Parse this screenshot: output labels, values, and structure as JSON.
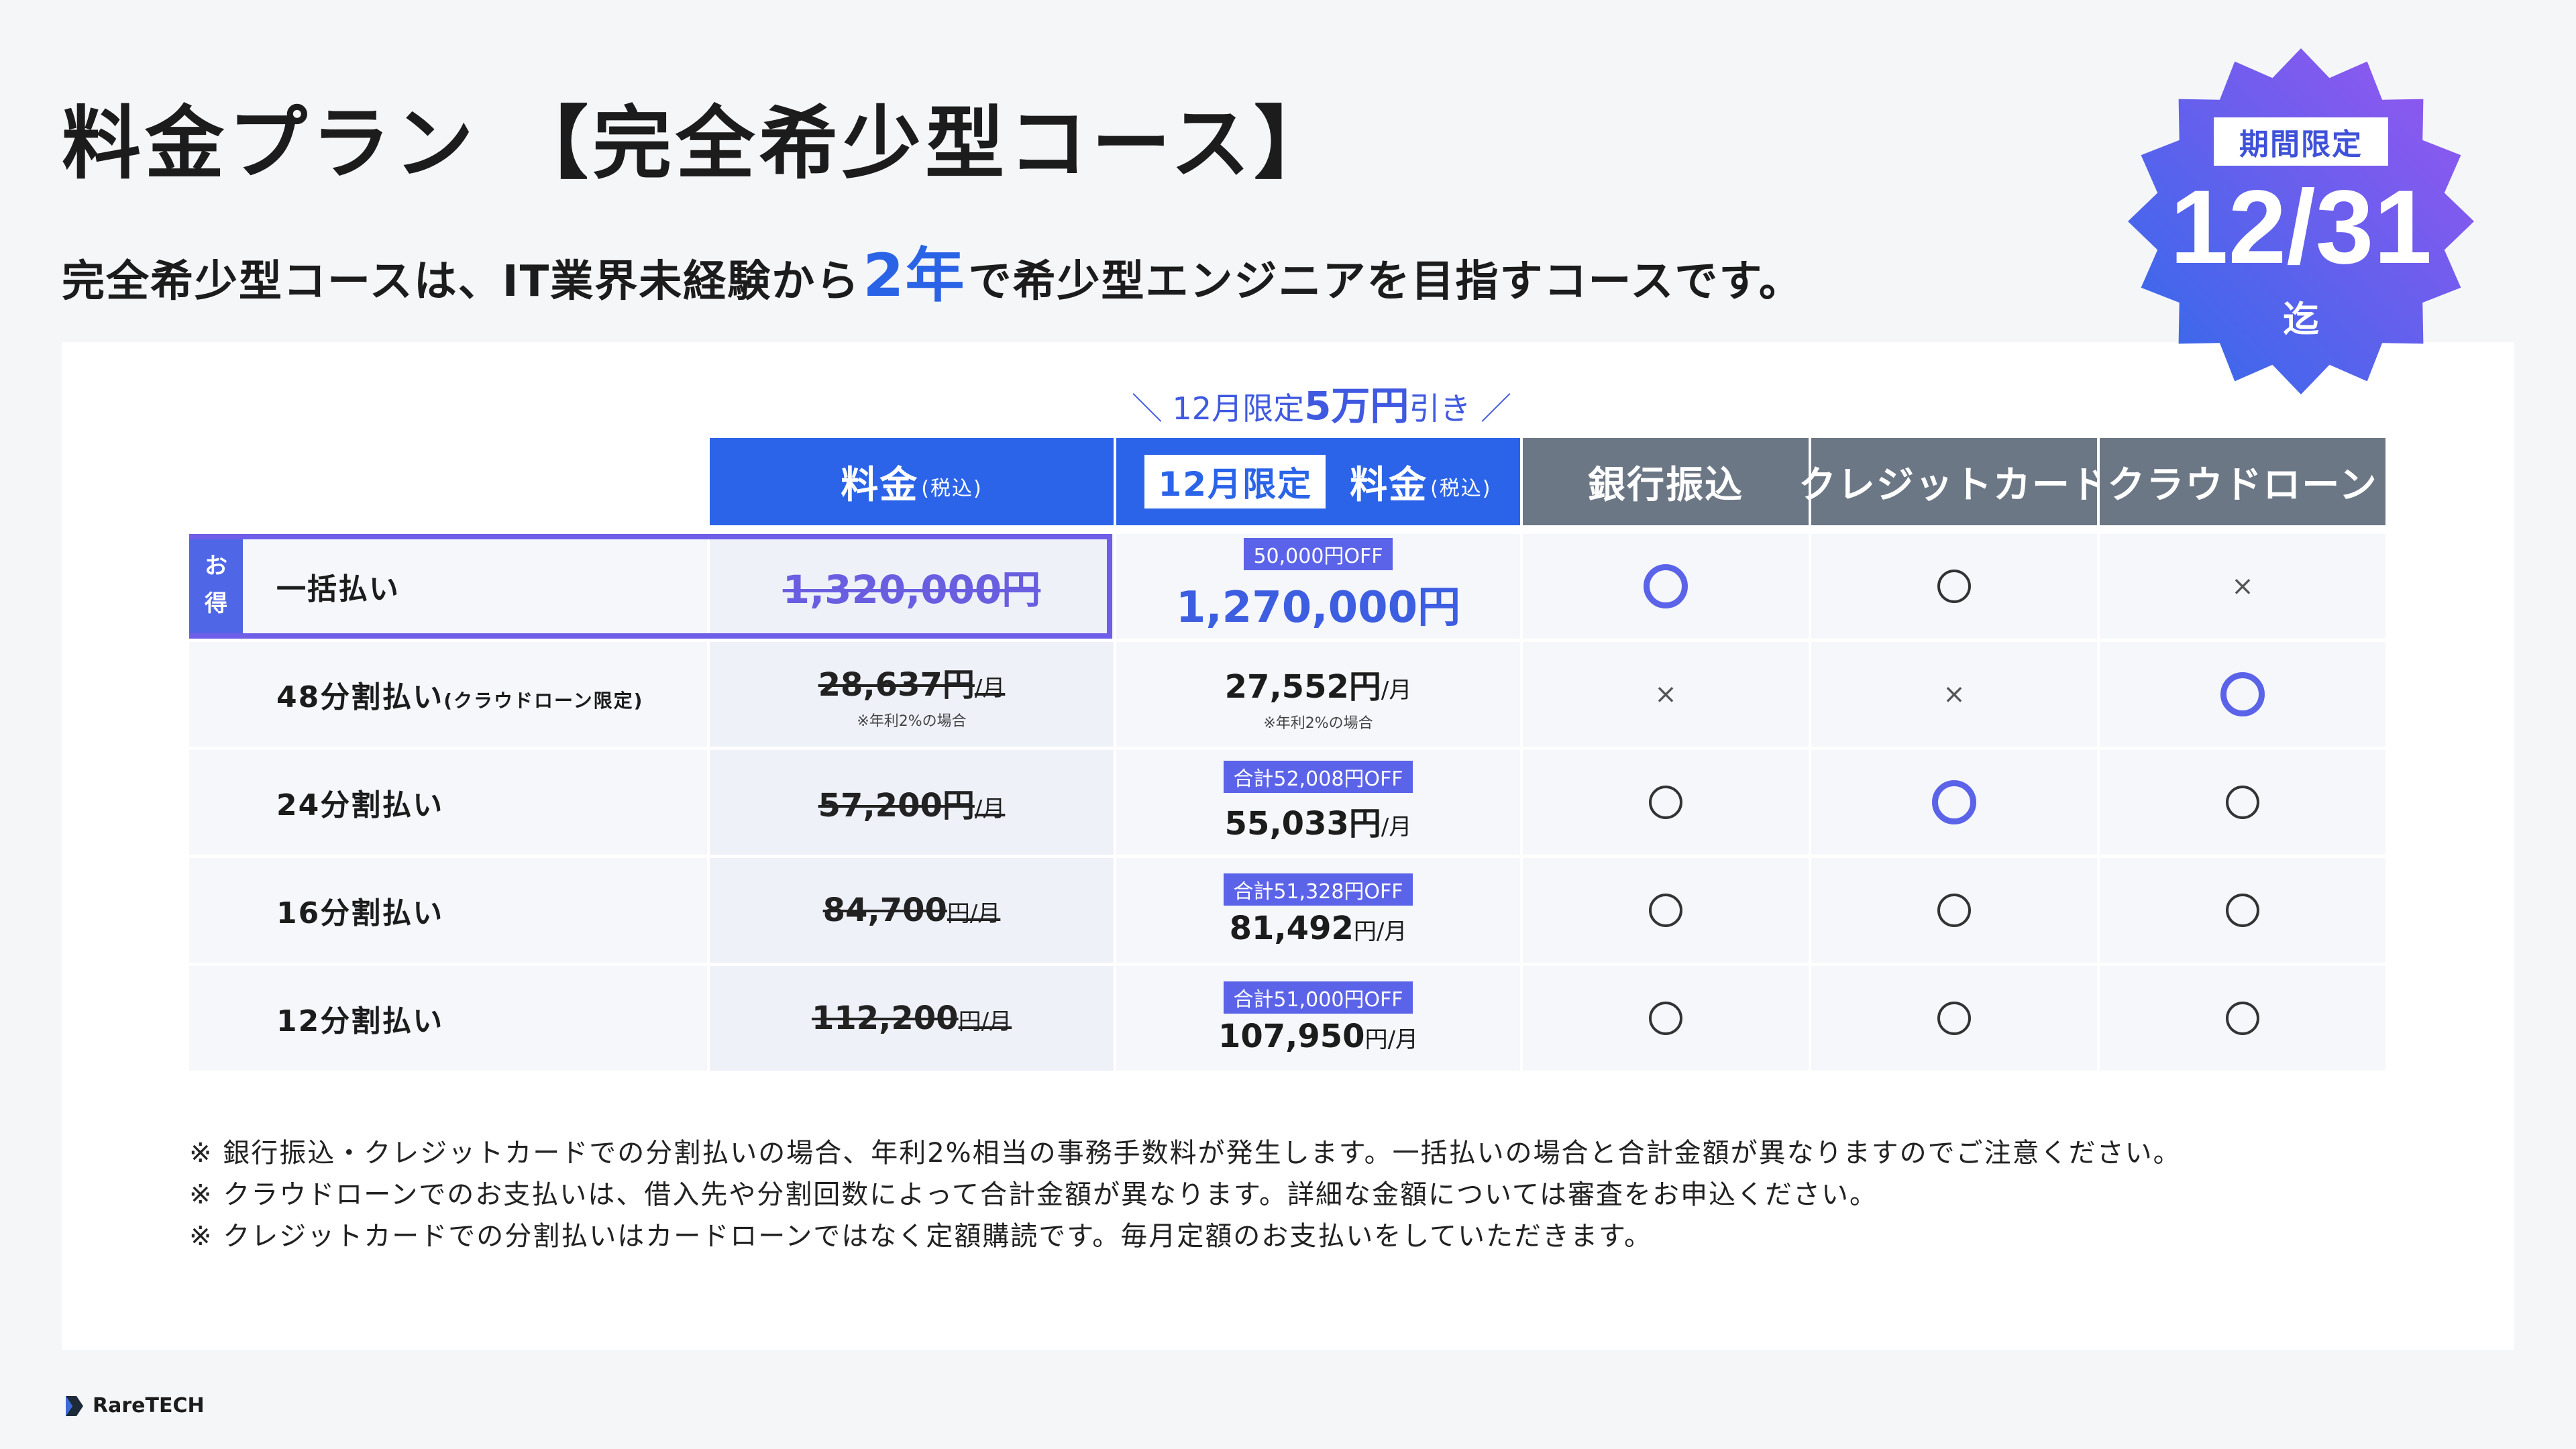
{
  "title": "料金プラン 【完全希少型コース】",
  "subtitle": {
    "before": "完全希少型コースは、IT業界未経験から",
    "highlight": "2年",
    "after": "で希少型エンジニアを目指すコースです。"
  },
  "badge": {
    "tag": "期間限定",
    "date": "12/31",
    "until": "迄",
    "colors": [
      "#2e6bea",
      "#9b55f0"
    ]
  },
  "promo": {
    "prefix": "＼ 12月限定",
    "highlight": "5万円",
    "suffix": "引き ／"
  },
  "headers": {
    "price": "料金",
    "price_tax": "(税込)",
    "dec_chip": "12月限定",
    "dec_price": "料金",
    "dec_tax": "(税込)",
    "bank": "銀行振込",
    "card": "クレジットカード",
    "loan": "クラウドローン"
  },
  "otoku": [
    "お",
    "得"
  ],
  "rows": [
    {
      "label": "一括払い",
      "label_note": "",
      "old_price": "1,320,000円",
      "old_unit": "",
      "old_note": "",
      "off_chip": "50,000円OFF",
      "new_price": "1,270,000円",
      "new_unit": "",
      "new_note": "",
      "bank": "circle-highlight",
      "card": "circle",
      "loan": "cross"
    },
    {
      "label": "48分割払い",
      "label_note": "(クラウドローン限定)",
      "old_price": "28,637円",
      "old_unit": "/月",
      "old_note": "※年利2%の場合",
      "off_chip": "",
      "new_price": "27,552円",
      "new_unit": "/月",
      "new_note": "※年利2%の場合",
      "bank": "cross",
      "card": "cross",
      "loan": "circle-highlight"
    },
    {
      "label": "24分割払い",
      "label_note": "",
      "old_price": "57,200円",
      "old_unit": "/月",
      "old_note": "",
      "off_chip": "合計52,008円OFF",
      "new_price": "55,033円",
      "new_unit": "/月",
      "new_note": "",
      "bank": "circle",
      "card": "circle-highlight",
      "loan": "circle"
    },
    {
      "label": "16分割払い",
      "label_note": "",
      "old_price": "84,700",
      "old_unit": "円/月",
      "old_note": "",
      "off_chip": "合計51,328円OFF",
      "new_price": "81,492",
      "new_unit": "円/月",
      "new_note": "",
      "bank": "circle",
      "card": "circle",
      "loan": "circle"
    },
    {
      "label": "12分割払い",
      "label_note": "",
      "old_price": "112,200",
      "old_unit": "円/月",
      "old_note": "",
      "off_chip": "合計51,000円OFF",
      "new_price": "107,950",
      "new_unit": "円/月",
      "new_note": "",
      "bank": "circle",
      "card": "circle",
      "loan": "circle"
    }
  ],
  "notes": [
    "※ 銀行振込・クレジットカードでの分割払いの場合、年利2%相当の事務手数料が発生します。一括払いの場合と合計金額が異なりますのでご注意ください。",
    "※ クラウドローンでのお支払いは、借入先や分割回数によって合計金額が異なります。詳細な金額については審査をお申込ください。",
    "※ クレジットカードでの分割払いはカードローンではなく定額購読です。毎月定額のお支払いをしていただきます。"
  ],
  "logo": "RareTECH",
  "marks": {
    "cross": "×"
  }
}
